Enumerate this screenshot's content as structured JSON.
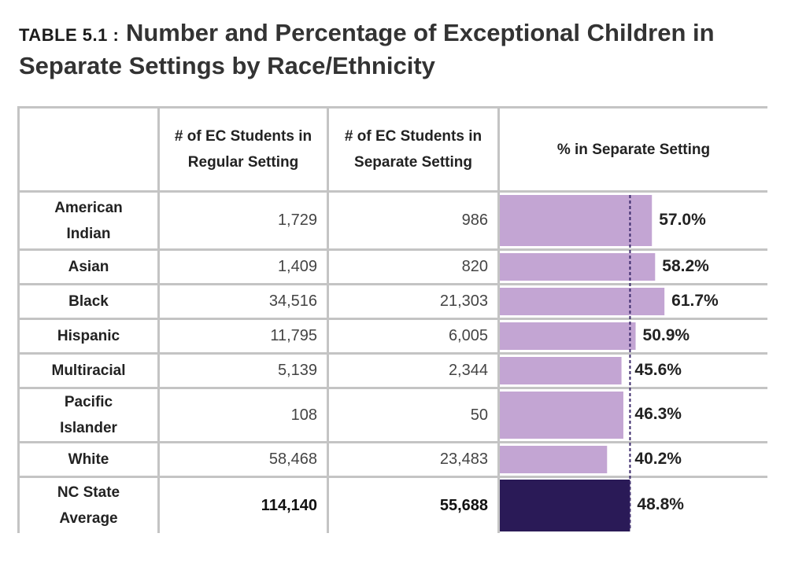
{
  "title": {
    "tag": "TABLE 5.1 :",
    "text": "Number and Percentage of Exceptional Children in Separate Settings by Race/Ethnicity"
  },
  "headers": {
    "regular": "# of EC Students in Regular Setting",
    "separate": "# of EC Students in Separate Setting",
    "pct": "% in Separate Setting"
  },
  "colors": {
    "bar": "#c3a5d3",
    "average_bar": "#2a1a57",
    "reference_line": "#3b2a6b",
    "grid": "#c4c4c4"
  },
  "chart_data": {
    "type": "table",
    "reference_value": 48.8,
    "rows": [
      {
        "label": "American Indian",
        "regular": "1,729",
        "separate": "986",
        "pct": 57.0,
        "pct_label": "57.0%",
        "average": false
      },
      {
        "label": "Asian",
        "regular": "1,409",
        "separate": "820",
        "pct": 58.2,
        "pct_label": "58.2%",
        "average": false
      },
      {
        "label": "Black",
        "regular": "34,516",
        "separate": "21,303",
        "pct": 61.7,
        "pct_label": "61.7%",
        "average": false
      },
      {
        "label": "Hispanic",
        "regular": "11,795",
        "separate": "6,005",
        "pct": 50.9,
        "pct_label": "50.9%",
        "average": false
      },
      {
        "label": "Multiracial",
        "regular": "5,139",
        "separate": "2,344",
        "pct": 45.6,
        "pct_label": "45.6%",
        "average": false
      },
      {
        "label": "Pacific Islander",
        "regular": "108",
        "separate": "50",
        "pct": 46.3,
        "pct_label": "46.3%",
        "average": false
      },
      {
        "label": "White",
        "regular": "58,468",
        "separate": "23,483",
        "pct": 40.2,
        "pct_label": "40.2%",
        "average": false
      },
      {
        "label": "NC State Average",
        "regular": "114,140",
        "separate": "55,688",
        "pct": 48.8,
        "pct_label": "48.8%",
        "average": true
      }
    ]
  }
}
